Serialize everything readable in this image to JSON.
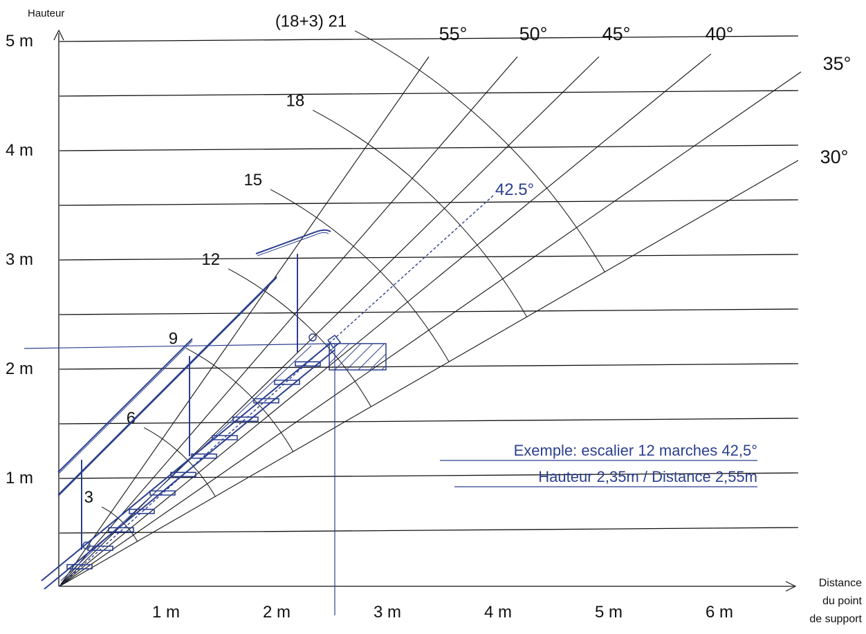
{
  "axes": {
    "y_title": "Hauteur",
    "x_title": [
      "Distance",
      "du point",
      "de support"
    ],
    "y_ticks": [
      {
        "value": 1,
        "label": "1 m"
      },
      {
        "value": 2,
        "label": "2 m"
      },
      {
        "value": 3,
        "label": "3 m"
      },
      {
        "value": 4,
        "label": "4 m"
      },
      {
        "value": 5,
        "label": "5 m"
      }
    ],
    "x_ticks": [
      {
        "value": 1,
        "label": "1 m"
      },
      {
        "value": 2,
        "label": "2 m"
      },
      {
        "value": 3,
        "label": "3 m"
      },
      {
        "value": 4,
        "label": "4 m"
      },
      {
        "value": 5,
        "label": "5 m"
      },
      {
        "value": 6,
        "label": "6 m"
      }
    ],
    "gridlines_height_m": [
      0.5,
      1,
      1.5,
      2,
      2.5,
      3,
      3.5,
      4,
      4.5,
      5
    ]
  },
  "angle_lines": [
    {
      "angle_deg": 55,
      "label": "55°"
    },
    {
      "angle_deg": 50,
      "label": "50°"
    },
    {
      "angle_deg": 45,
      "label": "45°"
    },
    {
      "angle_deg": 40,
      "label": "40°"
    },
    {
      "angle_deg": 35,
      "label": "35°"
    },
    {
      "angle_deg": 30,
      "label": "30°"
    }
  ],
  "step_arcs": [
    {
      "steps": 3,
      "label": "3"
    },
    {
      "steps": 6,
      "label": "6"
    },
    {
      "steps": 9,
      "label": "9"
    },
    {
      "steps": 12,
      "label": "12"
    },
    {
      "steps": 15,
      "label": "15"
    },
    {
      "steps": 18,
      "label": "18"
    },
    {
      "steps": 21,
      "label": "(18+3) 21"
    }
  ],
  "example": {
    "angle_deg": 42.5,
    "angle_label": "42.5°",
    "steps": 12,
    "height_m": 2.35,
    "distance_m": 2.55,
    "caption_line1": "Exemple: escalier 12 marches 42,5°",
    "caption_line2": "Hauteur 2,35m / Distance 2,55m"
  },
  "colors": {
    "lines": "#111111",
    "accent": "#2b3f8f"
  }
}
